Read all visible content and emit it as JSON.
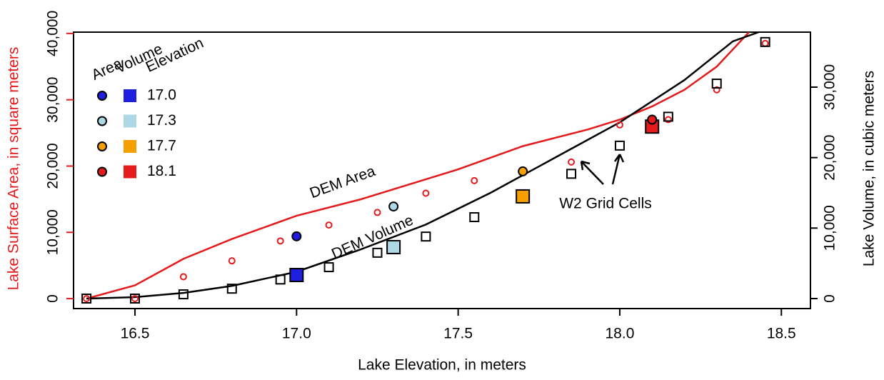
{
  "chart_data": {
    "type": "line",
    "x_label": "Lake Elevation, in meters",
    "y_label": "Lake Surface Area, in square meters",
    "y2_label": "Lake Volume, in cubic meters",
    "xlim": [
      16.31,
      18.59
    ],
    "xticks": [
      16.5,
      {
        "value": 17,
        "label": "17.0"
      },
      17.5,
      {
        "value": 18,
        "label": "18.0"
      },
      18.5
    ],
    "ylim": [
      -1500,
      40200
    ],
    "yticks": [
      0,
      {
        "value": 10000,
        "label": "10,000"
      },
      {
        "value": 20000,
        "label": "20,000"
      },
      {
        "value": 30000,
        "label": "30,000"
      },
      {
        "value": 40000,
        "label": "40,000"
      }
    ],
    "y2lim": [
      -1420,
      37800
    ],
    "y2ticks": [
      0,
      {
        "value": 10000,
        "label": "10,000"
      },
      {
        "value": 20000,
        "label": "20,000"
      },
      {
        "value": 30000,
        "label": "30,000"
      }
    ],
    "y_color": "#e41a1c",
    "series": [
      {
        "type": "line",
        "axis": "y",
        "color": "#e41a1c",
        "x": [
          16.35,
          16.5,
          16.65,
          16.8,
          17.0,
          17.2,
          17.5,
          17.7,
          17.9,
          18.0,
          18.1,
          18.2,
          18.3,
          18.4
        ],
        "values": [
          0,
          2000,
          6000,
          9000,
          12500,
          15000,
          19500,
          23000,
          25500,
          27000,
          29000,
          31500,
          35000,
          40200
        ]
      },
      {
        "type": "line",
        "axis": "y2",
        "color": "#000000",
        "x": [
          16.35,
          16.5,
          16.65,
          16.8,
          17.0,
          17.2,
          17.4,
          17.6,
          17.8,
          18.0,
          18.2,
          18.35,
          18.43
        ],
        "values": [
          0,
          200,
          800,
          1800,
          3800,
          7000,
          10500,
          15000,
          20000,
          25000,
          31000,
          36500,
          37800
        ]
      },
      {
        "type": "scatter",
        "marker": "circle",
        "axis": "y",
        "color": "#e41a1c",
        "x": [
          16.35,
          16.5,
          16.65,
          16.8,
          16.95,
          17.1,
          17.25,
          17.4,
          17.55,
          17.85,
          18.0,
          18.15,
          18.3,
          18.45
        ],
        "values": [
          0,
          0,
          3300,
          5700,
          8700,
          11100,
          13000,
          15900,
          17800,
          20600,
          26200,
          27000,
          31500,
          38500
        ]
      },
      {
        "type": "scatter",
        "marker": "square",
        "axis": "y2",
        "color": "#000000",
        "x": [
          16.35,
          16.5,
          16.65,
          16.8,
          16.95,
          17.1,
          17.25,
          17.4,
          17.55,
          17.85,
          18.0,
          18.15,
          18.3,
          18.45
        ],
        "values": [
          0,
          0,
          600,
          1400,
          2700,
          4450,
          6500,
          8800,
          11550,
          17700,
          21700,
          25800,
          30500,
          36400
        ]
      }
    ],
    "highlights": [
      {
        "label": "17.0",
        "x": 17.0,
        "area": 9400,
        "volume": 3340,
        "color": "#1f1fe0"
      },
      {
        "label": "17.3",
        "x": 17.3,
        "area": 13900,
        "volume": 7300,
        "color": "#add8e6"
      },
      {
        "label": "17.7",
        "x": 17.7,
        "area": 19200,
        "volume": 14500,
        "color": "#f5a000"
      },
      {
        "label": "18.1",
        "x": 18.1,
        "area": 27000,
        "volume": 24400,
        "color": "#e41a1c"
      }
    ],
    "legend": {
      "headers": [
        "Area",
        "Volume",
        "Elevation"
      ]
    },
    "annotations": [
      "DEM Area",
      "DEM Volume",
      "W2 Grid Cells"
    ]
  }
}
